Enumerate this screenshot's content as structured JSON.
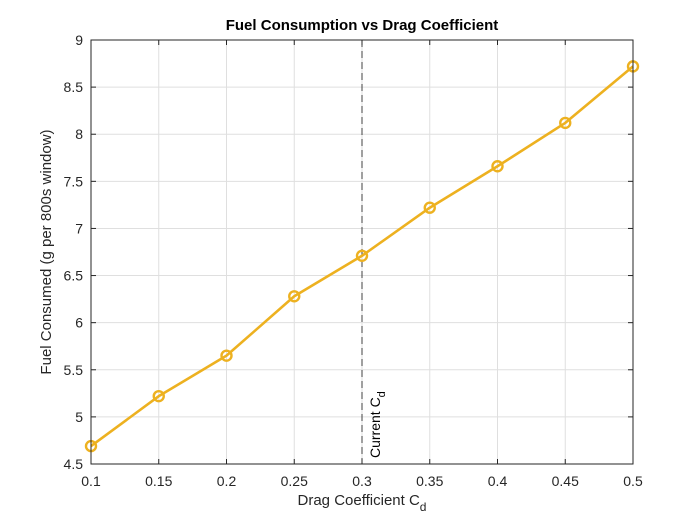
{
  "chart_data": {
    "type": "line",
    "title": "Fuel Consumption vs Drag Coefficient",
    "xlabel": "Drag Coefficient C",
    "xlabel_subscript": "d",
    "ylabel": "Fuel Consumed (g per 800s window)",
    "x": [
      0.1,
      0.15,
      0.2,
      0.25,
      0.3,
      0.35,
      0.4,
      0.45,
      0.5
    ],
    "series": [
      {
        "name": "Fuel Consumed",
        "values": [
          4.69,
          5.22,
          5.65,
          6.28,
          6.71,
          7.22,
          7.66,
          8.12,
          8.72
        ],
        "color": "#EDB120",
        "marker": "circle"
      }
    ],
    "xlim": [
      0.1,
      0.5
    ],
    "ylim": [
      4.5,
      9
    ],
    "xticks": [
      "0.1",
      "0.15",
      "0.2",
      "0.25",
      "0.3",
      "0.35",
      "0.4",
      "0.45",
      "0.5"
    ],
    "yticks": [
      "4.5",
      "5",
      "5.5",
      "6",
      "6.5",
      "7",
      "7.5",
      "8",
      "8.5",
      "9"
    ],
    "grid": true,
    "legend": null,
    "annotations": [
      {
        "type": "vline",
        "x": 0.3,
        "style": "dashed",
        "color": "#404040",
        "label": "Current C",
        "label_subscript": "d"
      }
    ]
  }
}
